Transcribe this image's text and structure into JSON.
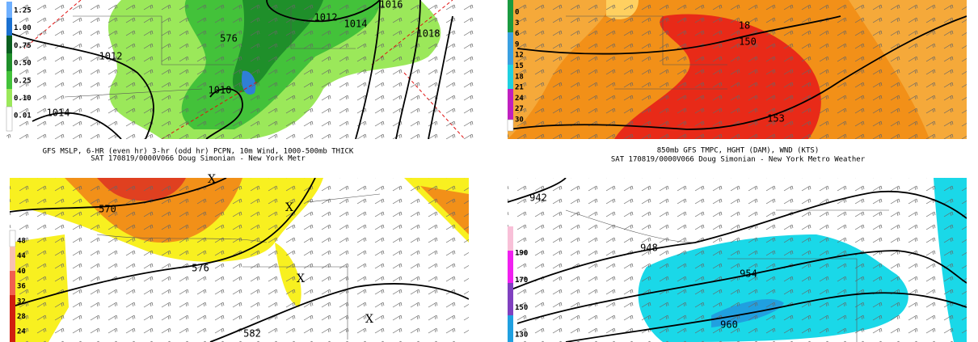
{
  "panels": [
    {
      "legend": [
        "1.25",
        "1.00",
        "0.75",
        "0.50",
        "0.25",
        "0.10",
        "0.01"
      ],
      "contour_labels": [
        "576",
        "1012",
        "1012",
        "1016",
        "1018",
        "1014",
        "1010",
        "1014"
      ],
      "caption": [
        "GFS MSLP, 6-HR (even hr) 3-hr (odd hr) PCPN, 10m Wind, 1000-500mb THICK",
        "SAT 170819/0000V066 Doug Simonian - New York Metr"
      ]
    },
    {
      "legend": [
        "0",
        "3",
        "6",
        "9",
        "12",
        "15",
        "18",
        "21",
        "24",
        "27",
        "30"
      ],
      "contour_labels": [
        "18",
        "150",
        "153"
      ],
      "caption": [
        "850mb GFS TMPC, HGHT (DAM), WND (KTS)",
        "SAT 170819/0000V066 Doug Simonian - New York Metro Weather"
      ]
    },
    {
      "legend": [
        "48",
        "44",
        "40",
        "36",
        "32",
        "28",
        "24"
      ],
      "contour_labels": [
        "570",
        "576",
        "582",
        "X",
        "X",
        "X",
        "X"
      ]
    },
    {
      "legend": [
        "190",
        "170",
        "150",
        "130"
      ],
      "contour_labels": [
        "942",
        "948",
        "954",
        "960"
      ]
    }
  ]
}
